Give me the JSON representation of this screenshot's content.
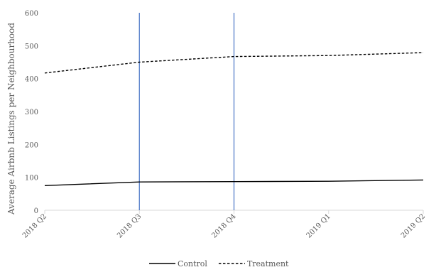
{
  "chart_data": {
    "type": "line",
    "title": "",
    "xlabel": "",
    "ylabel": "Average Airbnb Listings per Neighbourhood",
    "categories": [
      "2018 Q2",
      "2018 Q3",
      "2018 Q4",
      "2019 Q1",
      "2019 Q2"
    ],
    "ylim": [
      0,
      600
    ],
    "yticks": [
      0,
      100,
      200,
      300,
      400,
      500,
      600
    ],
    "grid": false,
    "legend_position": "bottom",
    "series": [
      {
        "name": "Control",
        "values": [
          75,
          86,
          87,
          88,
          92
        ],
        "color": "#000000",
        "dash": "solid"
      },
      {
        "name": "Treatment",
        "values": [
          417,
          450,
          467,
          470,
          479
        ],
        "color": "#000000",
        "dash": "dashed"
      }
    ],
    "vertical_markers": {
      "categories": [
        "2018 Q3",
        "2018 Q4"
      ],
      "color": "#4472C4"
    }
  }
}
